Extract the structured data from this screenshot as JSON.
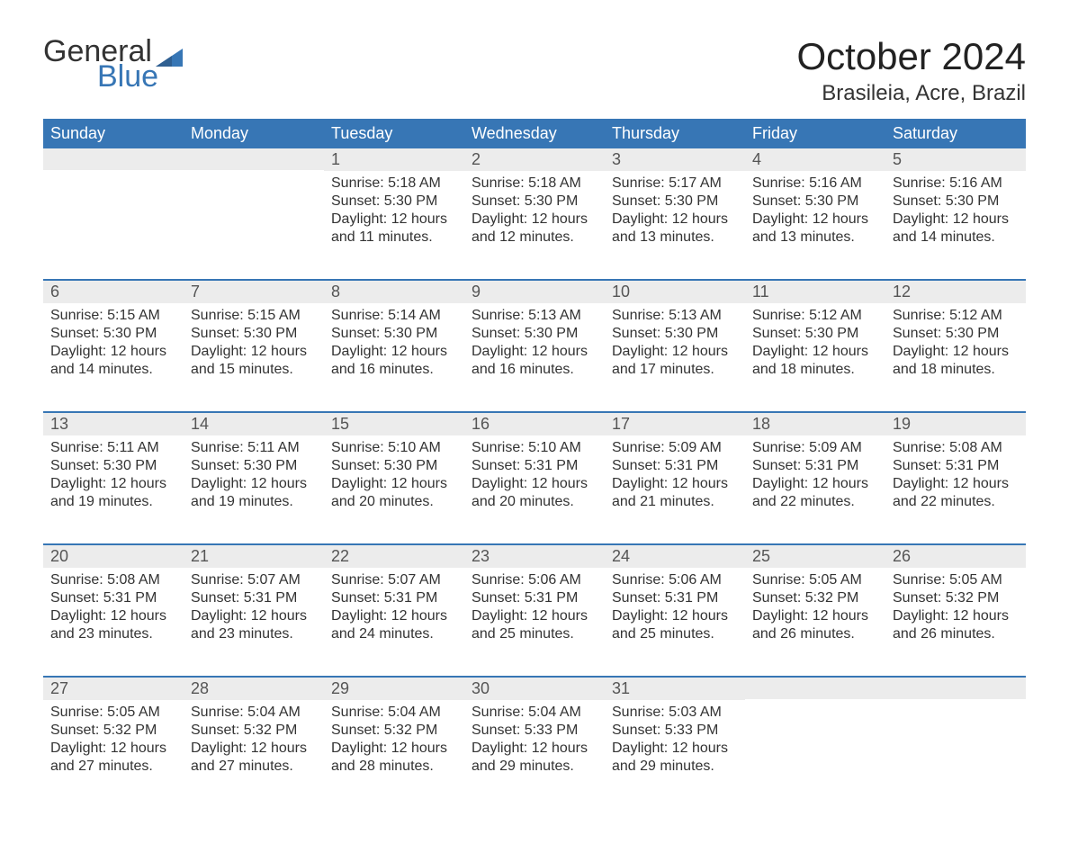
{
  "logo": {
    "word1": "General",
    "word2": "Blue"
  },
  "title": "October 2024",
  "location": "Brasileia, Acre, Brazil",
  "colors": {
    "header_bg": "#3776b5",
    "header_text": "#ffffff",
    "daynum_bg": "#ececec",
    "body_bg": "#ffffff",
    "text": "#333333",
    "brand_blue": "#3776b5",
    "row_border": "#3776b5"
  },
  "fonts": {
    "family": "Segoe UI, Arial, sans-serif",
    "title_size_pt": 32,
    "location_size_pt": 18,
    "dayheader_size_pt": 14,
    "daynum_size_pt": 14,
    "body_size_pt": 12
  },
  "calendar": {
    "type": "table",
    "columns": [
      "Sunday",
      "Monday",
      "Tuesday",
      "Wednesday",
      "Thursday",
      "Friday",
      "Saturday"
    ],
    "weeks": [
      [
        null,
        null,
        {
          "n": "1",
          "sunrise": "5:18 AM",
          "sunset": "5:30 PM",
          "daylight": "12 hours and 11 minutes."
        },
        {
          "n": "2",
          "sunrise": "5:18 AM",
          "sunset": "5:30 PM",
          "daylight": "12 hours and 12 minutes."
        },
        {
          "n": "3",
          "sunrise": "5:17 AM",
          "sunset": "5:30 PM",
          "daylight": "12 hours and 13 minutes."
        },
        {
          "n": "4",
          "sunrise": "5:16 AM",
          "sunset": "5:30 PM",
          "daylight": "12 hours and 13 minutes."
        },
        {
          "n": "5",
          "sunrise": "5:16 AM",
          "sunset": "5:30 PM",
          "daylight": "12 hours and 14 minutes."
        }
      ],
      [
        {
          "n": "6",
          "sunrise": "5:15 AM",
          "sunset": "5:30 PM",
          "daylight": "12 hours and 14 minutes."
        },
        {
          "n": "7",
          "sunrise": "5:15 AM",
          "sunset": "5:30 PM",
          "daylight": "12 hours and 15 minutes."
        },
        {
          "n": "8",
          "sunrise": "5:14 AM",
          "sunset": "5:30 PM",
          "daylight": "12 hours and 16 minutes."
        },
        {
          "n": "9",
          "sunrise": "5:13 AM",
          "sunset": "5:30 PM",
          "daylight": "12 hours and 16 minutes."
        },
        {
          "n": "10",
          "sunrise": "5:13 AM",
          "sunset": "5:30 PM",
          "daylight": "12 hours and 17 minutes."
        },
        {
          "n": "11",
          "sunrise": "5:12 AM",
          "sunset": "5:30 PM",
          "daylight": "12 hours and 18 minutes."
        },
        {
          "n": "12",
          "sunrise": "5:12 AM",
          "sunset": "5:30 PM",
          "daylight": "12 hours and 18 minutes."
        }
      ],
      [
        {
          "n": "13",
          "sunrise": "5:11 AM",
          "sunset": "5:30 PM",
          "daylight": "12 hours and 19 minutes."
        },
        {
          "n": "14",
          "sunrise": "5:11 AM",
          "sunset": "5:30 PM",
          "daylight": "12 hours and 19 minutes."
        },
        {
          "n": "15",
          "sunrise": "5:10 AM",
          "sunset": "5:30 PM",
          "daylight": "12 hours and 20 minutes."
        },
        {
          "n": "16",
          "sunrise": "5:10 AM",
          "sunset": "5:31 PM",
          "daylight": "12 hours and 20 minutes."
        },
        {
          "n": "17",
          "sunrise": "5:09 AM",
          "sunset": "5:31 PM",
          "daylight": "12 hours and 21 minutes."
        },
        {
          "n": "18",
          "sunrise": "5:09 AM",
          "sunset": "5:31 PM",
          "daylight": "12 hours and 22 minutes."
        },
        {
          "n": "19",
          "sunrise": "5:08 AM",
          "sunset": "5:31 PM",
          "daylight": "12 hours and 22 minutes."
        }
      ],
      [
        {
          "n": "20",
          "sunrise": "5:08 AM",
          "sunset": "5:31 PM",
          "daylight": "12 hours and 23 minutes."
        },
        {
          "n": "21",
          "sunrise": "5:07 AM",
          "sunset": "5:31 PM",
          "daylight": "12 hours and 23 minutes."
        },
        {
          "n": "22",
          "sunrise": "5:07 AM",
          "sunset": "5:31 PM",
          "daylight": "12 hours and 24 minutes."
        },
        {
          "n": "23",
          "sunrise": "5:06 AM",
          "sunset": "5:31 PM",
          "daylight": "12 hours and 25 minutes."
        },
        {
          "n": "24",
          "sunrise": "5:06 AM",
          "sunset": "5:31 PM",
          "daylight": "12 hours and 25 minutes."
        },
        {
          "n": "25",
          "sunrise": "5:05 AM",
          "sunset": "5:32 PM",
          "daylight": "12 hours and 26 minutes."
        },
        {
          "n": "26",
          "sunrise": "5:05 AM",
          "sunset": "5:32 PM",
          "daylight": "12 hours and 26 minutes."
        }
      ],
      [
        {
          "n": "27",
          "sunrise": "5:05 AM",
          "sunset": "5:32 PM",
          "daylight": "12 hours and 27 minutes."
        },
        {
          "n": "28",
          "sunrise": "5:04 AM",
          "sunset": "5:32 PM",
          "daylight": "12 hours and 27 minutes."
        },
        {
          "n": "29",
          "sunrise": "5:04 AM",
          "sunset": "5:32 PM",
          "daylight": "12 hours and 28 minutes."
        },
        {
          "n": "30",
          "sunrise": "5:04 AM",
          "sunset": "5:33 PM",
          "daylight": "12 hours and 29 minutes."
        },
        {
          "n": "31",
          "sunrise": "5:03 AM",
          "sunset": "5:33 PM",
          "daylight": "12 hours and 29 minutes."
        },
        null,
        null
      ]
    ],
    "labels": {
      "sunrise": "Sunrise:",
      "sunset": "Sunset:",
      "daylight": "Daylight:"
    }
  }
}
